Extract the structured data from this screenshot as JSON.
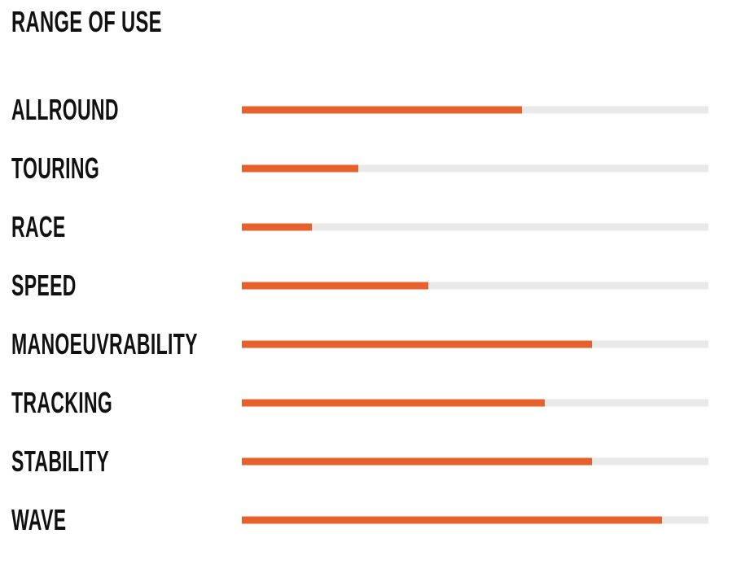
{
  "title": "RANGE OF USE",
  "colors": {
    "background": "#FFFFFF",
    "text": "#111111",
    "bar_fill": "#E7612C",
    "bar_track": "#E9E9E9"
  },
  "chart_data": {
    "type": "bar",
    "orientation": "horizontal",
    "title": "RANGE OF USE",
    "categories": [
      "ALLROUND",
      "TOURING",
      "RACE",
      "SPEED",
      "MANOEUVRABILITY",
      "TRACKING",
      "STABILITY",
      "WAVE"
    ],
    "values": [
      60,
      25,
      15,
      40,
      75,
      65,
      75,
      90
    ],
    "value_unit": "percent_of_full_track",
    "xlim": [
      0,
      100
    ],
    "xlabel": "",
    "ylabel": "",
    "grid": false,
    "legend": false,
    "tick_labels": []
  }
}
